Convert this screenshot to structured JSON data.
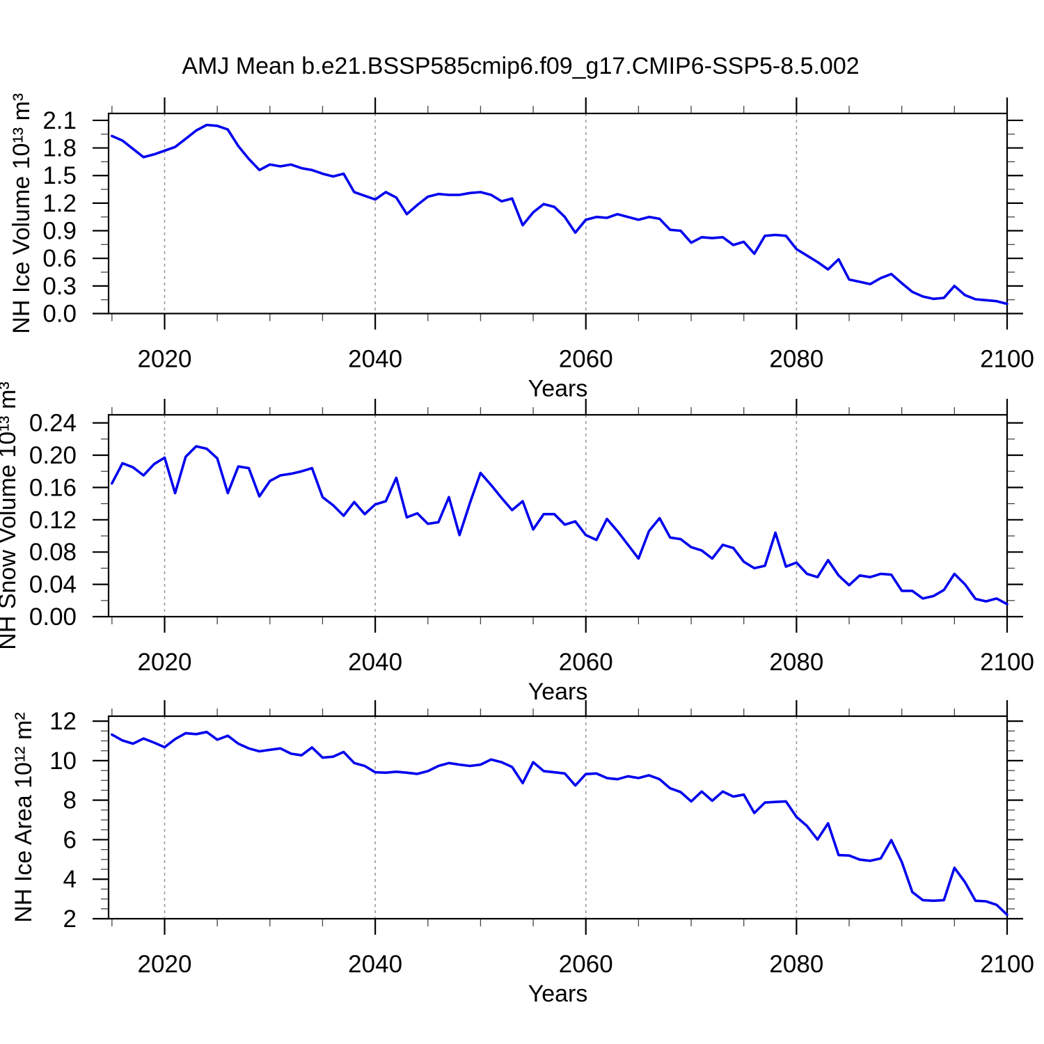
{
  "figure": {
    "title": "AMJ Mean b.e21.BSSP585cmip6.f09_g17.CMIP6-SSP5-8.5.002",
    "background": "#ffffff",
    "line_color": "#0000ee",
    "frame_color": "#000000",
    "gridline_color": "#999999"
  },
  "chart_data": [
    {
      "type": "line",
      "name": "nh-ice-volume",
      "ylabel": "NH Ice Volume 10¹³ m³",
      "xlabel": "Years",
      "x_start": 2015,
      "x_end": 2100,
      "xlim": [
        2014.68,
        2100
      ],
      "ylim": [
        0,
        2.175
      ],
      "yticks": [
        0.0,
        0.3,
        0.6,
        0.9,
        1.2,
        1.5,
        1.8,
        2.1
      ],
      "ytick_labels": [
        "0.0",
        "0.3",
        "0.6",
        "0.9",
        "1.2",
        "1.5",
        "1.8",
        "2.1"
      ],
      "ytick_minor_step": 0.15,
      "xticks": [
        2020,
        2040,
        2060,
        2080,
        2100
      ],
      "xtick_labels": [
        "2020",
        "2040",
        "2060",
        "2080",
        "2100"
      ],
      "xtick_minor_step": 5,
      "grid_x": [
        2020,
        2040,
        2060,
        2080
      ],
      "values": [
        1.93,
        1.88,
        1.79,
        1.7,
        1.73,
        1.77,
        1.81,
        1.9,
        1.99,
        2.05,
        2.04,
        2.0,
        1.82,
        1.68,
        1.56,
        1.62,
        1.6,
        1.62,
        1.58,
        1.56,
        1.52,
        1.49,
        1.52,
        1.32,
        1.28,
        1.24,
        1.32,
        1.26,
        1.08,
        1.18,
        1.27,
        1.3,
        1.29,
        1.29,
        1.31,
        1.32,
        1.29,
        1.22,
        1.25,
        0.96,
        1.1,
        1.19,
        1.16,
        1.05,
        0.88,
        1.02,
        1.05,
        1.04,
        1.08,
        1.05,
        1.02,
        1.05,
        1.03,
        0.91,
        0.9,
        0.77,
        0.83,
        0.82,
        0.83,
        0.745,
        0.78,
        0.65,
        0.845,
        0.855,
        0.845,
        0.7,
        0.63,
        0.56,
        0.48,
        0.59,
        0.37,
        0.345,
        0.32,
        0.385,
        0.43,
        0.33,
        0.235,
        0.185,
        0.16,
        0.17,
        0.3,
        0.2,
        0.155,
        0.145,
        0.135,
        0.105
      ]
    },
    {
      "type": "line",
      "name": "nh-snow-volume",
      "ylabel": "NH Snow Volume 10¹³ m³",
      "xlabel": "Years",
      "x_start": 2015,
      "x_end": 2100,
      "xlim": [
        2014.68,
        2100
      ],
      "ylim": [
        0,
        0.25
      ],
      "yticks": [
        0.0,
        0.04,
        0.08,
        0.12,
        0.16,
        0.2,
        0.24
      ],
      "ytick_labels": [
        "0.00",
        "0.04",
        "0.08",
        "0.12",
        "0.16",
        "0.20",
        "0.24"
      ],
      "ytick_minor_step": 0.02,
      "xticks": [
        2020,
        2040,
        2060,
        2080,
        2100
      ],
      "xtick_labels": [
        "2020",
        "2040",
        "2060",
        "2080",
        "2100"
      ],
      "xtick_minor_step": 5,
      "grid_x": [
        2020,
        2040,
        2060,
        2080
      ],
      "values": [
        0.165,
        0.19,
        0.185,
        0.175,
        0.189,
        0.197,
        0.153,
        0.198,
        0.211,
        0.208,
        0.196,
        0.153,
        0.186,
        0.184,
        0.149,
        0.168,
        0.175,
        0.177,
        0.18,
        0.184,
        0.148,
        0.138,
        0.125,
        0.142,
        0.127,
        0.139,
        0.143,
        0.172,
        0.123,
        0.128,
        0.115,
        0.117,
        0.148,
        0.101,
        0.141,
        0.178,
        0.163,
        0.147,
        0.132,
        0.143,
        0.108,
        0.127,
        0.127,
        0.114,
        0.118,
        0.101,
        0.095,
        0.121,
        0.106,
        0.089,
        0.072,
        0.106,
        0.122,
        0.098,
        0.096,
        0.086,
        0.082,
        0.072,
        0.089,
        0.085,
        0.068,
        0.06,
        0.063,
        0.104,
        0.062,
        0.067,
        0.053,
        0.049,
        0.07,
        0.051,
        0.039,
        0.051,
        0.049,
        0.053,
        0.052,
        0.032,
        0.032,
        0.0225,
        0.0255,
        0.033,
        0.053,
        0.04,
        0.022,
        0.019,
        0.0225,
        0.0155
      ]
    },
    {
      "type": "line",
      "name": "nh-ice-area",
      "ylabel": "NH Ice Area 10¹² m²",
      "xlabel": "Years",
      "x_start": 2015,
      "x_end": 2100,
      "xlim": [
        2014.68,
        2100
      ],
      "ylim": [
        2.0,
        12.25
      ],
      "yticks": [
        2,
        4,
        6,
        8,
        10,
        12
      ],
      "ytick_labels": [
        "2",
        "4",
        "6",
        "8",
        "10",
        "12"
      ],
      "ytick_minor_step": 0.5,
      "xticks": [
        2020,
        2040,
        2060,
        2080,
        2100
      ],
      "xtick_labels": [
        "2020",
        "2040",
        "2060",
        "2080",
        "2100"
      ],
      "xtick_minor_step": 5,
      "grid_x": [
        2020,
        2040,
        2060,
        2080
      ],
      "values": [
        11.32,
        11.02,
        10.86,
        11.12,
        10.91,
        10.68,
        11.09,
        11.39,
        11.34,
        11.45,
        11.06,
        11.26,
        10.86,
        10.62,
        10.47,
        10.55,
        10.62,
        10.35,
        10.27,
        10.67,
        10.15,
        10.2,
        10.44,
        9.88,
        9.73,
        9.41,
        9.39,
        9.44,
        9.39,
        9.33,
        9.47,
        9.73,
        9.88,
        9.8,
        9.73,
        9.8,
        10.06,
        9.92,
        9.68,
        8.86,
        9.92,
        9.47,
        9.41,
        9.35,
        8.74,
        9.32,
        9.35,
        9.12,
        9.06,
        9.21,
        9.12,
        9.26,
        9.06,
        8.6,
        8.41,
        7.94,
        8.44,
        7.97,
        8.44,
        8.18,
        8.28,
        7.35,
        7.88,
        7.91,
        7.94,
        7.15,
        6.69,
        6.01,
        6.83,
        5.22,
        5.2,
        4.99,
        4.93,
        5.05,
        5.98,
        4.87,
        3.35,
        2.94,
        2.91,
        2.94,
        4.58,
        3.85,
        2.91,
        2.88,
        2.7,
        2.2
      ]
    }
  ]
}
